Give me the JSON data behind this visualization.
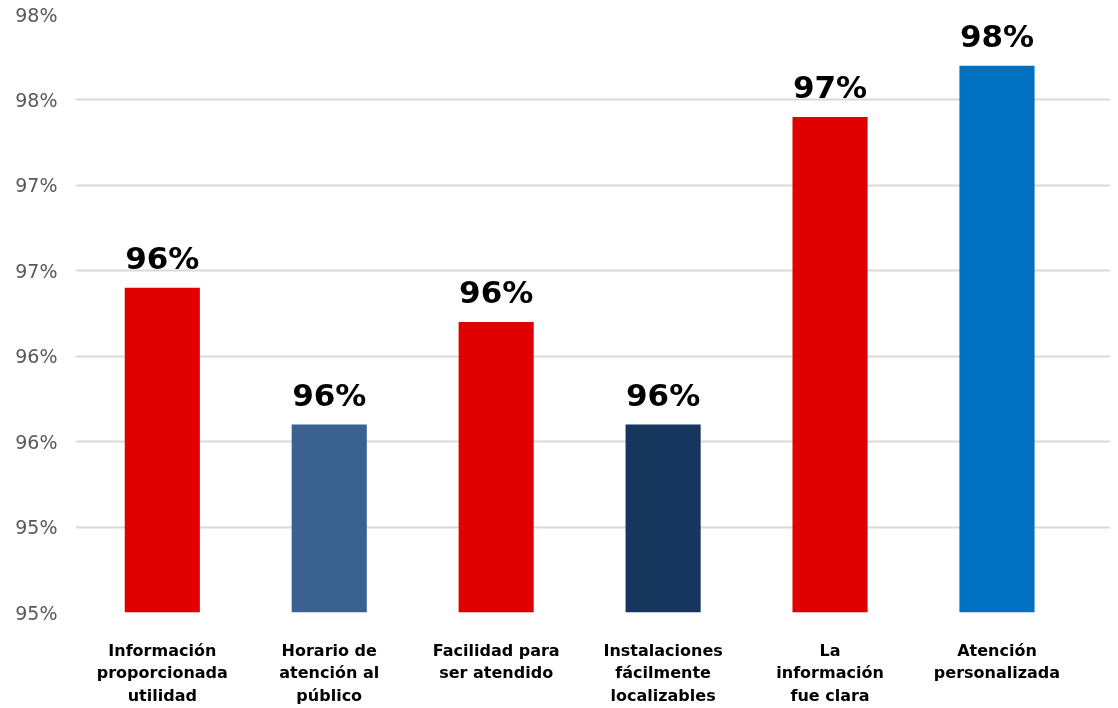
{
  "chart_data": {
    "type": "bar",
    "categories": [
      "Información\nproporcionada\nutilidad",
      "Horario de\natención al\npúblico",
      "Facilidad para\nser atendido",
      "Instalaciones\nfácilmente\nlocalizables",
      "La\ninformación\nfue clara",
      "Atención\npersonalizada"
    ],
    "values": [
      96.4,
      95.6,
      96.2,
      95.6,
      97.4,
      97.7
    ],
    "colors": [
      "#e00000",
      "#3a6190",
      "#e00000",
      "#17365d",
      "#e00000",
      "#0070c0"
    ],
    "value_labels": [
      "96%",
      "96%",
      "96%",
      "96%",
      "97%",
      "98%"
    ],
    "ylim": [
      94.5,
      98
    ],
    "yticks": [
      {
        "value": 94.5,
        "label": "95%"
      },
      {
        "value": 95,
        "label": "95%"
      },
      {
        "value": 95.5,
        "label": "96%"
      },
      {
        "value": 96,
        "label": "96%"
      },
      {
        "value": 96.5,
        "label": "97%"
      },
      {
        "value": 97,
        "label": "97%"
      },
      {
        "value": 97.5,
        "label": "98%"
      },
      {
        "value": 98,
        "label": "98%"
      }
    ],
    "grid": "y"
  }
}
